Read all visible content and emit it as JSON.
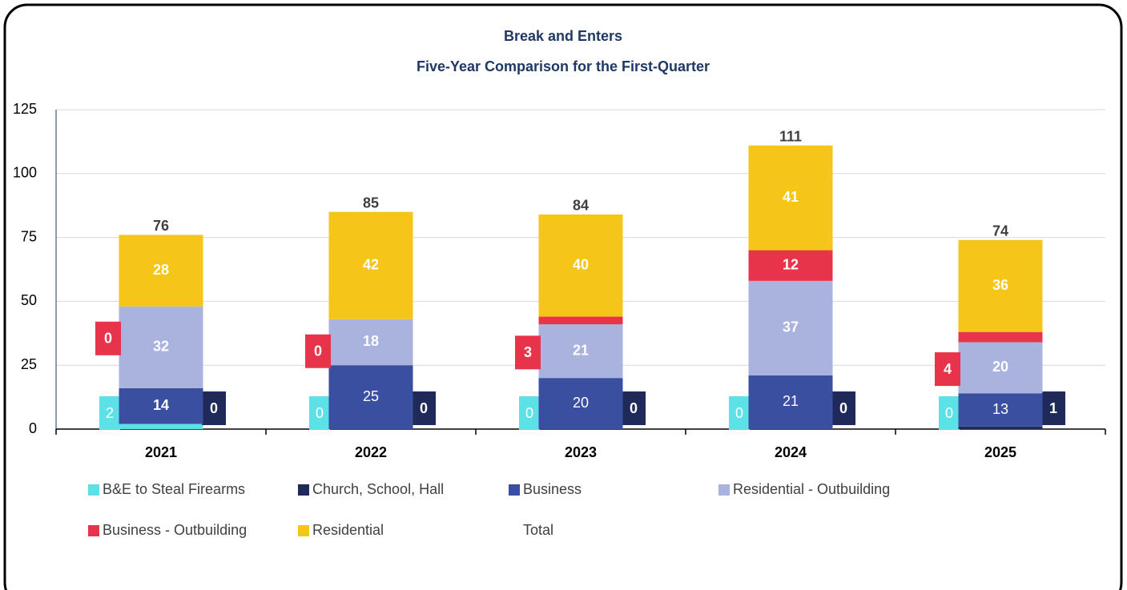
{
  "chart_data": {
    "type": "stacked_bar",
    "title": "Break and Enters",
    "subtitle": "Five-Year Comparison for the First-Quarter",
    "categories": [
      "2021",
      "2022",
      "2023",
      "2024",
      "2025"
    ],
    "series": [
      {
        "name": "B&E to Steal Firearms",
        "color": "#5ce1e6",
        "values": [
          2,
          0,
          0,
          0,
          0
        ]
      },
      {
        "name": "Church, School, Hall",
        "color": "#1f2a5a",
        "values": [
          0,
          0,
          0,
          0,
          1
        ]
      },
      {
        "name": "Business",
        "color": "#3a4fa0",
        "values": [
          14,
          25,
          20,
          21,
          13
        ]
      },
      {
        "name": "Residential - Outbuilding",
        "color": "#a9b3de",
        "values": [
          32,
          18,
          21,
          37,
          20
        ]
      },
      {
        "name": "Business - Outbuilding",
        "color": "#e8344a",
        "values": [
          0,
          0,
          3,
          12,
          4
        ]
      },
      {
        "name": "Residential",
        "color": "#f5c518",
        "values": [
          28,
          42,
          40,
          41,
          36
        ]
      },
      {
        "name": "Total",
        "values": [
          76,
          85,
          84,
          111,
          74
        ]
      }
    ],
    "ylim": [
      0,
      125
    ],
    "yticks": [
      0,
      25,
      50,
      75,
      100,
      125
    ],
    "grid": true,
    "legend": "bottom"
  }
}
